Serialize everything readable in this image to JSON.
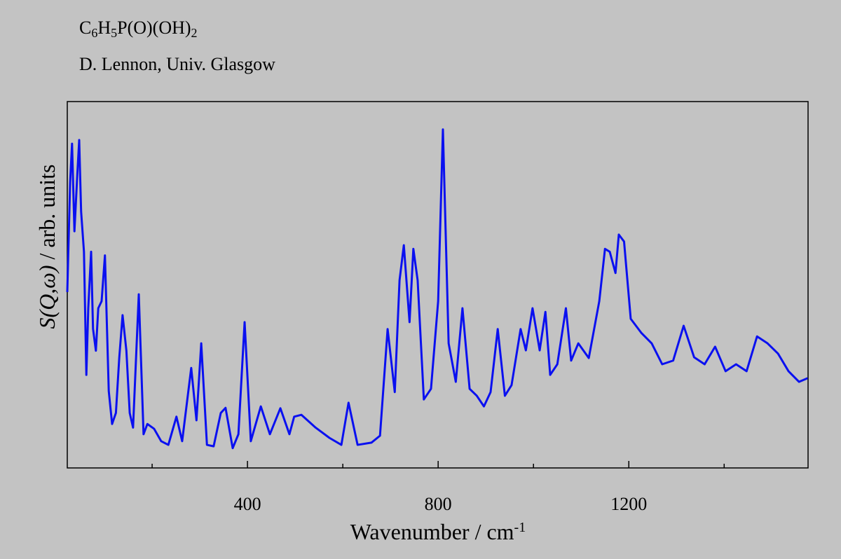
{
  "chart_data": {
    "type": "line",
    "title": "C6H5P(O)(OH)2",
    "subtitle": "D. Lennon, Univ. Glasgow",
    "x_label": "Wavenumber / cm-1",
    "y_label": "S(Q,ω) / arb. units",
    "xlim": [
      22,
      1576
    ],
    "ylim": [
      0,
      100
    ],
    "xticks": [
      400,
      800,
      1200
    ],
    "xminor_ticks": [
      200,
      600,
      1000,
      1400
    ],
    "x": [
      22,
      28,
      32,
      37,
      43,
      47,
      51,
      57,
      62,
      66,
      72,
      76,
      82,
      87,
      94,
      101,
      109,
      116,
      124,
      131,
      138,
      146,
      153,
      160,
      172,
      182,
      190,
      204,
      219,
      234,
      251,
      263,
      282,
      293,
      303,
      315,
      329,
      344,
      354,
      369,
      381,
      394,
      407,
      428,
      447,
      469,
      488,
      498,
      513,
      543,
      572,
      597,
      612,
      631,
      660,
      678,
      694,
      709,
      719,
      728,
      740,
      748,
      757,
      770,
      785,
      800,
      810,
      822,
      837,
      851,
      866,
      881,
      896,
      910,
      925,
      940,
      954,
      973,
      984,
      998,
      1013,
      1025,
      1035,
      1050,
      1068,
      1079,
      1094,
      1116,
      1138,
      1150,
      1160,
      1172,
      1179,
      1190,
      1204,
      1226,
      1248,
      1270,
      1293,
      1315,
      1337,
      1359,
      1381,
      1403,
      1425,
      1447,
      1469,
      1491,
      1513,
      1535,
      1557,
      1575
    ],
    "series": [
      {
        "name": "S(Q,ω)",
        "color": "#0a10f0",
        "values": [
          48,
          78,
          88.5,
          64.6,
          80,
          89.5,
          70,
          59,
          25.4,
          43.6,
          59,
          38,
          32,
          43.6,
          45.5,
          58,
          21,
          12,
          15,
          30,
          41.7,
          32,
          15,
          11,
          47.4,
          9.2,
          12,
          10.7,
          7.3,
          6.3,
          14,
          7.3,
          27.3,
          13,
          34,
          6.3,
          5.9,
          15,
          16.4,
          5.4,
          9.2,
          39.8,
          7.3,
          16.8,
          9.2,
          16.3,
          9.2,
          14,
          14.5,
          11,
          8.2,
          6.3,
          17.8,
          6.3,
          6.9,
          8.8,
          37.9,
          20.7,
          51.2,
          60.8,
          39.8,
          59.8,
          51.2,
          18.7,
          21.6,
          45.5,
          92.4,
          34,
          23.5,
          43.6,
          21.6,
          19.7,
          16.8,
          20.7,
          37.9,
          19.7,
          22.6,
          37.9,
          32.1,
          43.6,
          32.1,
          42.6,
          25.4,
          28.3,
          43.6,
          29.3,
          34,
          30,
          45.5,
          59.8,
          59,
          53.2,
          63.7,
          61.8,
          40.7,
          36.9,
          34,
          28.3,
          29.3,
          38.8,
          30.2,
          28.3,
          33.1,
          26.4,
          28.3,
          26.4,
          35.9,
          34,
          31.2,
          26.4,
          23.5,
          24.5
        ]
      }
    ]
  }
}
